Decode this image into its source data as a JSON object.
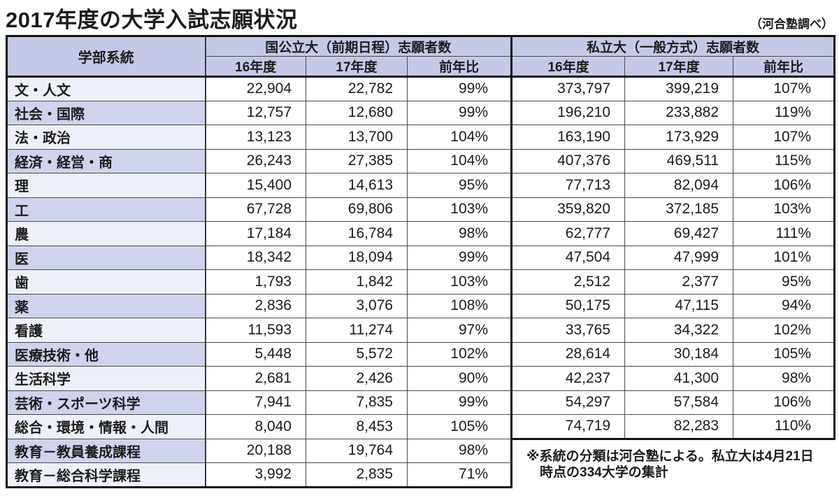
{
  "page": {
    "title": "2017年度の大学入試志願状況",
    "source_credit": "（河合塾調べ）"
  },
  "chart_data": {
    "type": "table",
    "title": "2017年度の大学入試志願状況",
    "corner_header": "学部系統",
    "column_groups": [
      "国公立大（前期日程）志願者数",
      "私立大（一般方式）志願者数"
    ],
    "sub_headers": [
      "16年度",
      "17年度",
      "前年比"
    ],
    "rows": [
      {
        "label": "文・人文",
        "national": [
          "22,904",
          "22,782",
          "99%"
        ],
        "private": [
          "373,797",
          "399,219",
          "107%"
        ]
      },
      {
        "label": "社会・国際",
        "national": [
          "12,757",
          "12,680",
          "99%"
        ],
        "private": [
          "196,210",
          "233,882",
          "119%"
        ]
      },
      {
        "label": "法・政治",
        "national": [
          "13,123",
          "13,700",
          "104%"
        ],
        "private": [
          "163,190",
          "173,929",
          "107%"
        ]
      },
      {
        "label": "経済・経営・商",
        "national": [
          "26,243",
          "27,385",
          "104%"
        ],
        "private": [
          "407,376",
          "469,511",
          "115%"
        ]
      },
      {
        "label": "理",
        "national": [
          "15,400",
          "14,613",
          "95%"
        ],
        "private": [
          "77,713",
          "82,094",
          "106%"
        ]
      },
      {
        "label": "工",
        "national": [
          "67,728",
          "69,806",
          "103%"
        ],
        "private": [
          "359,820",
          "372,185",
          "103%"
        ]
      },
      {
        "label": "農",
        "national": [
          "17,184",
          "16,784",
          "98%"
        ],
        "private": [
          "62,777",
          "69,427",
          "111%"
        ]
      },
      {
        "label": "医",
        "national": [
          "18,342",
          "18,094",
          "99%"
        ],
        "private": [
          "47,504",
          "47,999",
          "101%"
        ]
      },
      {
        "label": "歯",
        "national": [
          "1,793",
          "1,842",
          "103%"
        ],
        "private": [
          "2,512",
          "2,377",
          "95%"
        ]
      },
      {
        "label": "薬",
        "national": [
          "2,836",
          "3,076",
          "108%"
        ],
        "private": [
          "50,175",
          "47,115",
          "94%"
        ]
      },
      {
        "label": "看護",
        "national": [
          "11,593",
          "11,274",
          "97%"
        ],
        "private": [
          "33,765",
          "34,322",
          "102%"
        ]
      },
      {
        "label": "医療技術・他",
        "national": [
          "5,448",
          "5,572",
          "102%"
        ],
        "private": [
          "28,614",
          "30,184",
          "105%"
        ]
      },
      {
        "label": "生活科学",
        "national": [
          "2,681",
          "2,426",
          "90%"
        ],
        "private": [
          "42,237",
          "41,300",
          "98%"
        ]
      },
      {
        "label": "芸術・スポーツ科学",
        "national": [
          "7,941",
          "7,835",
          "99%"
        ],
        "private": [
          "54,297",
          "57,584",
          "106%"
        ]
      },
      {
        "label": "総合・環境・情報・人間",
        "national": [
          "8,040",
          "8,453",
          "105%"
        ],
        "private": [
          "74,719",
          "82,283",
          "110%"
        ]
      },
      {
        "label": "教育－教員養成課程",
        "national": [
          "20,188",
          "19,764",
          "98%"
        ],
        "private": null
      },
      {
        "label": "教育－総合科学課程",
        "national": [
          "3,992",
          "2,835",
          "71%"
        ],
        "private": null
      }
    ],
    "footnote_lines": [
      "※系統の分類は河合塾による。私立大は4月21日",
      "時点の334大学の集計"
    ]
  },
  "colors": {
    "header_bg": "#c5c9e6",
    "row_label_light": "#eef0f9",
    "row_label_dark": "#cfd3ec",
    "border_thick": "#111111",
    "border_thin": "#4a4a4a",
    "text": "#1c1c1c"
  }
}
